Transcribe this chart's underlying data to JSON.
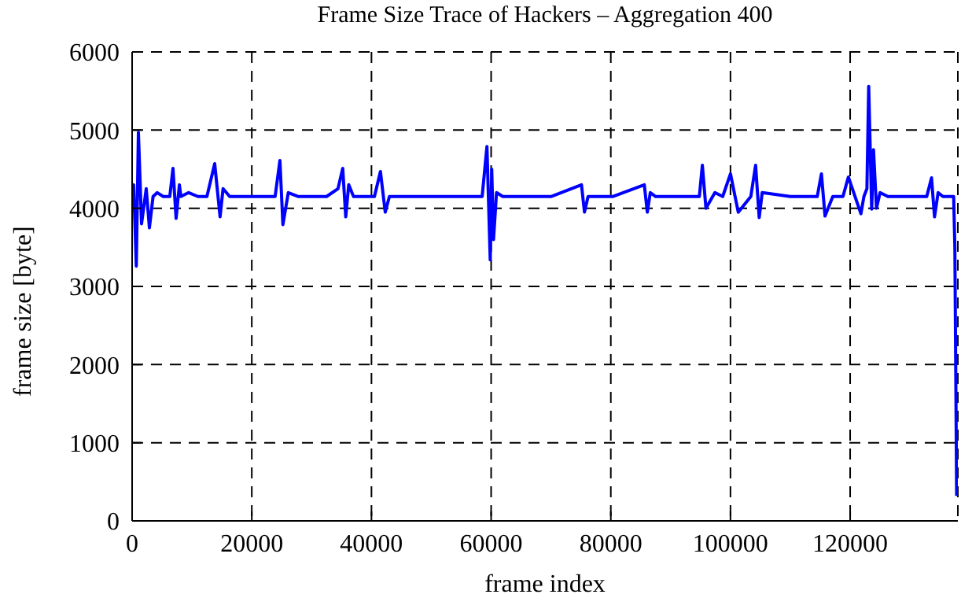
{
  "chart_data": {
    "type": "line",
    "title": "Frame Size Trace of Hackers – Aggregation 400",
    "xlabel": "frame index",
    "ylabel": "frame size [byte]",
    "x": [
      0,
      260,
      700,
      1050,
      1575,
      2360,
      2890,
      3500,
      4200,
      5200,
      6300,
      6830,
      7350,
      7900,
      8140,
      9450,
      11000,
      12500,
      13800,
      14700,
      15200,
      16300,
      17300,
      19950,
      22000,
      23900,
      24700,
      25200,
      26100,
      27800,
      30450,
      32500,
      34400,
      35200,
      35700,
      36200,
      37000,
      38500,
      40500,
      41500,
      42300,
      43000,
      46200,
      51450,
      56700,
      58500,
      59300,
      59850,
      60100,
      60400,
      60900,
      61950,
      64600,
      70000,
      75100,
      75600,
      76200,
      80300,
      85600,
      86100,
      86600,
      87500,
      90800,
      94800,
      95300,
      95900,
      97400,
      98700,
      100000,
      101300,
      103400,
      104200,
      104800,
      105300,
      110000,
      114500,
      115200,
      115800,
      117100,
      118800,
      119700,
      121800,
      122300,
      122800,
      123100,
      123600,
      123900,
      124400,
      125000,
      126300,
      130000,
      132800,
      133600,
      134100,
      134700,
      135500,
      136800,
      137300,
      137500,
      137800
    ],
    "series": [
      {
        "color": "#0000ff",
        "values": [
          4200,
          4300,
          3260,
          4970,
          3800,
          4250,
          3750,
          4150,
          4200,
          4150,
          4150,
          4510,
          3870,
          4300,
          4150,
          4200,
          4150,
          4150,
          4570,
          3890,
          4250,
          4150,
          4150,
          4150,
          4150,
          4150,
          4610,
          3790,
          4200,
          4150,
          4150,
          4150,
          4250,
          4510,
          3890,
          4300,
          4150,
          4150,
          4150,
          4470,
          3950,
          4150,
          4150,
          4150,
          4150,
          4150,
          4790,
          3340,
          4500,
          3600,
          4200,
          4150,
          4150,
          4150,
          4300,
          3950,
          4150,
          4150,
          4300,
          3950,
          4200,
          4150,
          4150,
          4150,
          4550,
          4000,
          4200,
          4150,
          4440,
          3950,
          4150,
          4550,
          3880,
          4200,
          4150,
          4150,
          4440,
          3900,
          4150,
          4150,
          4400,
          3930,
          4150,
          4250,
          5560,
          3990,
          4750,
          4000,
          4200,
          4150,
          4150,
          4150,
          4390,
          3890,
          4200,
          4150,
          4150,
          4150,
          3500,
          320
        ]
      }
    ],
    "xlim": [
      0,
      138000
    ],
    "xticks": [
      0,
      20000,
      40000,
      60000,
      80000,
      100000,
      120000
    ],
    "ylim": [
      0,
      6000
    ],
    "yticks": [
      0,
      1000,
      2000,
      3000,
      4000,
      5000,
      6000
    ],
    "grid": true,
    "legend": false,
    "marker": "none",
    "line_style": "solid"
  }
}
